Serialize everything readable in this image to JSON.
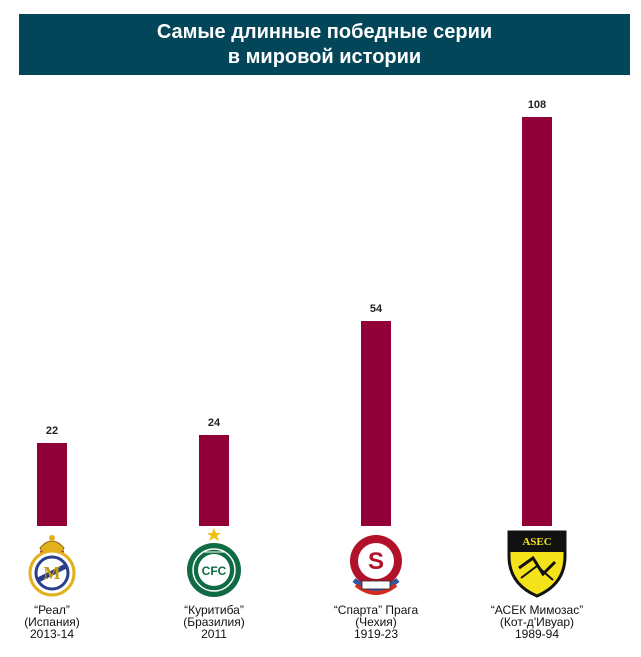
{
  "title": {
    "line1": "Самые длинные победные серии",
    "line2": "в мировой истории"
  },
  "colors": {
    "bar": "#920038",
    "header_bg": "#034659"
  },
  "logos": [
    "real-madrid-crest-icon",
    "coritiba-crest-icon",
    "sparta-praha-crest-icon",
    "asec-mimosas-crest-icon"
  ],
  "chart_data": {
    "type": "bar",
    "title": "Самые длинные победные серии в мировой истории",
    "categories": [
      "“Реал” (Испания) 2013-14",
      "“Куритиба” (Бразилия) 2011",
      "“Спарта” Прага (Чехия) 1919-23",
      "“АСЕК Мимозас” (Кот-д'Ивуар) 1989-94"
    ],
    "category_lines": [
      [
        "“Реал”",
        "(Испания)",
        "2013-14"
      ],
      [
        "“Куритиба”",
        "(Бразилия)",
        "2011"
      ],
      [
        "“Спарта” Прага",
        "(Чехия)",
        "1919-23"
      ],
      [
        "“АСЕК Мимозас”",
        "(Кот-д'Ивуар)",
        "1989-94"
      ]
    ],
    "values": [
      22,
      24,
      54,
      108
    ],
    "data_labels": [
      "22",
      "24",
      "54",
      "108"
    ],
    "ylim": [
      0,
      108
    ],
    "grid": false,
    "legend": "none"
  }
}
